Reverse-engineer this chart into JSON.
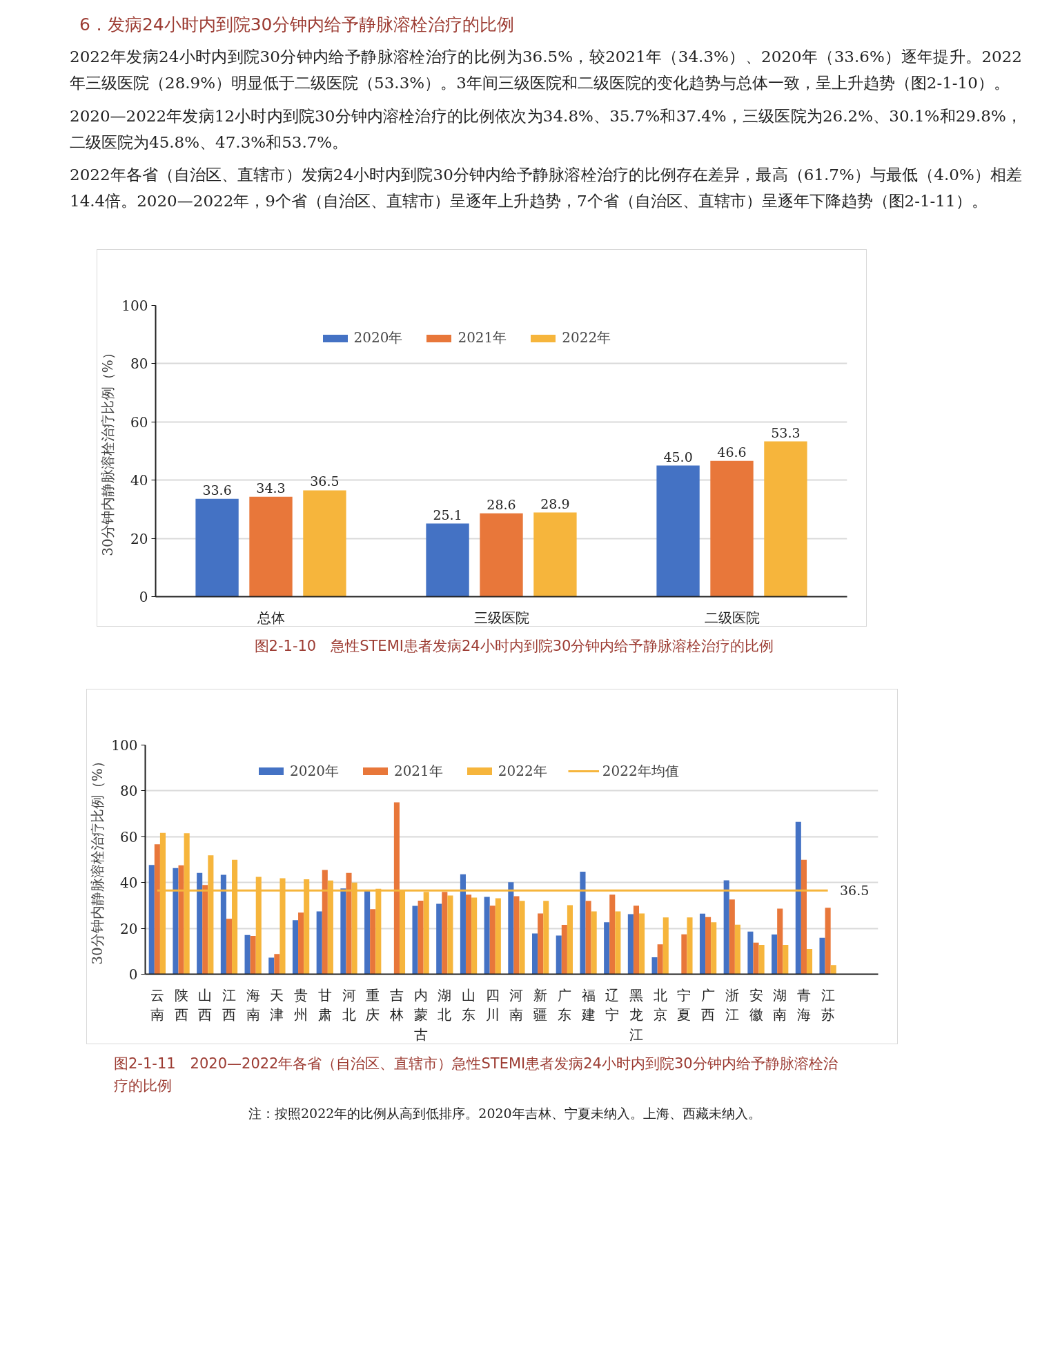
{
  "chart_data": [
    {
      "type": "bar",
      "title": "图2-1-10　急性STEMI患者发病24小时内到院30分钟内给予静脉溶栓治疗的比例",
      "annotations": [
        "6．发病24小时内到院30分钟内给予静脉溶栓治疗的比例",
        "2022年发病24小时内到院30分钟内给予静脉溶栓治疗的比例为36.5%，较2021年（34.3%）、2020年（33.6%）逐年提升。2022年三级医院（28.9%）明显低于二级医院（53.3%）。3年间三级医院和二级医院的变化趋势与总体一致，呈上升趋势（图2-1-10）。",
        "2020—2022年发病12小时内到院30分钟内溶栓治疗的比例依次为34.8%、35.7%和37.4%，三级医院为26.2%、30.1%和29.8%，二级医院为45.8%、47.3%和53.7%。",
        "2022年各省（自治区、直辖市）发病24小时内到院30分钟内给予静脉溶栓治疗的比例存在差异，最高（61.7%）与最低（4.0%）相差14.4倍。2020—2022年，9个省（自治区、直辖市）呈逐年上升趋势，7个省（自治区、直辖市）呈逐年下降趋势（图2-1-11）。"
      ],
      "categories": [
        "总体",
        "三级医院",
        "二级医院"
      ],
      "series": [
        {
          "name": "2020年",
          "color": "#4472c4",
          "values": [
            33.6,
            25.1,
            45.0
          ],
          "value_labels": [
            "33.6",
            "25.1",
            "45.0"
          ]
        },
        {
          "name": "2021年",
          "color": "#e8773a",
          "values": [
            34.3,
            28.6,
            46.6
          ],
          "value_labels": [
            "34.3",
            "28.6",
            "46.6"
          ]
        },
        {
          "name": "2022年",
          "color": "#f6b53c",
          "values": [
            36.5,
            28.9,
            53.3
          ],
          "value_labels": [
            "36.5",
            "28.9",
            "53.3"
          ]
        }
      ],
      "ylabel": "30分钟内静脉溶栓治疗比例（%）",
      "ylim": [
        0,
        100
      ],
      "yticks": [
        0,
        20,
        40,
        60,
        80,
        100
      ],
      "grid": "y",
      "legend": "top"
    },
    {
      "type": "bar",
      "title": "图2-1-11　2020—2022年各省（自治区、直辖市）急性STEMI患者发病24小时内到院30分钟内给予静脉溶栓治疗的比例",
      "annotations": [
        {
          "text": "36.5",
          "x": "江苏",
          "y": 36.5
        },
        "注：按照2022年的比例从高到低排序。2020年吉林、宁夏未纳入。上海、西藏未纳入。"
      ],
      "categories": [
        "云南",
        "陕西",
        "山西",
        "江西",
        "海南",
        "天津",
        "贵州",
        "甘肃",
        "河北",
        "重庆",
        "吉林",
        "内蒙古",
        "湖北",
        "山东",
        "四川",
        "河南",
        "新疆",
        "广东",
        "福建",
        "辽宁",
        "黑龙江",
        "北京",
        "宁夏",
        "广西",
        "浙江",
        "安徽",
        "湖南",
        "青海",
        "江苏"
      ],
      "series": [
        {
          "name": "2020年",
          "color": "#4472c4",
          "values": [
            47.7,
            46.3,
            44.2,
            43.4,
            17.1,
            7.2,
            23.6,
            27.4,
            37.4,
            36.4,
            null,
            29.8,
            30.7,
            43.6,
            33.7,
            40.1,
            17.8,
            16.9,
            44.7,
            22.7,
            26.2,
            7.4,
            null,
            26.4,
            41.0,
            18.6,
            17.3,
            66.5,
            15.9
          ]
        },
        {
          "name": "2021年",
          "color": "#e8773a",
          "values": [
            56.7,
            47.5,
            38.9,
            24.2,
            16.7,
            8.8,
            26.9,
            45.5,
            44.2,
            28.4,
            75.0,
            32.1,
            35.9,
            34.7,
            29.9,
            34.0,
            26.5,
            21.5,
            32.0,
            34.7,
            29.9,
            13.0,
            17.4,
            24.9,
            32.6,
            13.8,
            28.6,
            49.9,
            29.0
          ]
        },
        {
          "name": "2022年",
          "color": "#f6b53c",
          "values": [
            61.7,
            61.5,
            51.9,
            49.9,
            42.5,
            41.9,
            41.4,
            40.9,
            40.0,
            37.3,
            36.7,
            35.9,
            34.3,
            33.4,
            33.1,
            32.0,
            32.0,
            30.1,
            27.4,
            27.4,
            26.5,
            24.8,
            24.8,
            22.7,
            21.6,
            12.8,
            12.8,
            11.0,
            4.0
          ]
        },
        {
          "name": "2022年均值",
          "type": "line",
          "color": "#f6b53c",
          "values": [
            36.5,
            36.5,
            36.5,
            36.5,
            36.5,
            36.5,
            36.5,
            36.5,
            36.5,
            36.5,
            36.5,
            36.5,
            36.5,
            36.5,
            36.5,
            36.5,
            36.5,
            36.5,
            36.5,
            36.5,
            36.5,
            36.5,
            36.5,
            36.5,
            36.5,
            36.5,
            36.5,
            36.5,
            36.5
          ]
        }
      ],
      "ylabel": "30分钟内静脉溶栓治疗比例（%）",
      "ylim": [
        0,
        100
      ],
      "yticks": [
        0,
        20,
        40,
        60,
        80,
        100
      ],
      "grid": "y",
      "legend": "top"
    }
  ]
}
